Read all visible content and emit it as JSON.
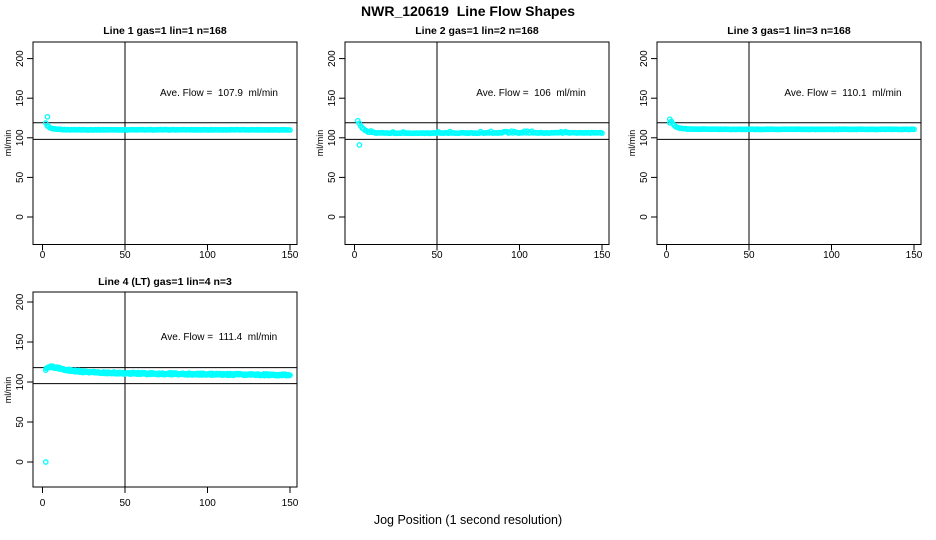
{
  "title": "NWR_120619  Line Flow Shapes",
  "footer": "Jog Position (1 second resolution)",
  "colors": {
    "points": "#00FFFF",
    "axis": "#000000",
    "background": "#FFFFFF"
  },
  "chart_data": [
    {
      "type": "scatter",
      "title": "Line 1 gas=1 lin=1 n=168",
      "annotation": "Ave. Flow =  107.9  ml/min",
      "ave_flow": 107.9,
      "ylabel": "ml/min",
      "xlabel": "",
      "x_ticks": [
        0,
        50,
        100,
        150
      ],
      "y_ticks": [
        0,
        50,
        100,
        150,
        200
      ],
      "xlim": [
        0,
        150
      ],
      "ylim": [
        0,
        200
      ],
      "vline_x": 50,
      "ref_lines": [
        98,
        119
      ],
      "n_shown": 168,
      "series_keypoints": [
        [
          2,
          118.5
        ],
        [
          3,
          115
        ],
        [
          5,
          112
        ],
        [
          8,
          110.8
        ],
        [
          14,
          110.2
        ],
        [
          30,
          110.1
        ],
        [
          150,
          110.1
        ]
      ],
      "outliers": [
        [
          3,
          126.5
        ]
      ],
      "jitter": 0.25,
      "spikes": false,
      "render_points": 168
    },
    {
      "type": "scatter",
      "title": "Line 2 gas=1 lin=2 n=168",
      "annotation": "Ave. Flow =  106  ml/min",
      "ave_flow": 106,
      "ylabel": "ml/min",
      "xlabel": "",
      "x_ticks": [
        0,
        50,
        100,
        150
      ],
      "y_ticks": [
        0,
        50,
        100,
        150,
        200
      ],
      "xlim": [
        0,
        150
      ],
      "ylim": [
        0,
        200
      ],
      "vline_x": 50,
      "ref_lines": [
        98,
        119
      ],
      "n_shown": 168,
      "series_keypoints": [
        [
          2,
          121.5
        ],
        [
          3,
          117.5
        ],
        [
          5,
          111.5
        ],
        [
          8,
          107.5
        ],
        [
          13,
          106.2
        ],
        [
          25,
          105.8
        ],
        [
          60,
          106
        ],
        [
          100,
          106.3
        ],
        [
          150,
          106.2
        ]
      ],
      "outliers": [
        [
          3,
          91
        ]
      ],
      "jitter": 0.35,
      "spikes": true,
      "render_points": 168
    },
    {
      "type": "scatter",
      "title": "Line 3 gas=1 lin=3 n=168",
      "annotation": "Ave. Flow =  110.1  ml/min",
      "ave_flow": 110.1,
      "ylabel": "ml/min",
      "xlabel": "",
      "x_ticks": [
        0,
        50,
        100,
        150
      ],
      "y_ticks": [
        0,
        50,
        100,
        150,
        200
      ],
      "xlim": [
        0,
        150
      ],
      "ylim": [
        0,
        200
      ],
      "vline_x": 50,
      "ref_lines": [
        98,
        119
      ],
      "n_shown": 168,
      "series_keypoints": [
        [
          2,
          123.5
        ],
        [
          3,
          120.5
        ],
        [
          5,
          114.5
        ],
        [
          8,
          112
        ],
        [
          14,
          111
        ],
        [
          40,
          110.7
        ],
        [
          150,
          110.7
        ]
      ],
      "outliers": [
        [
          2,
          119
        ]
      ],
      "jitter": 0.25,
      "spikes": false,
      "render_points": 168
    },
    {
      "type": "scatter",
      "title": "Line 4 (LT) gas=1 lin=4 n=3",
      "annotation": "Ave. Flow =  111.4  ml/min",
      "ave_flow": 111.4,
      "ylabel": "ml/min",
      "xlabel": "",
      "x_ticks": [
        0,
        50,
        100,
        150
      ],
      "y_ticks": [
        0,
        50,
        100,
        150,
        200
      ],
      "xlim": [
        0,
        150
      ],
      "ylim": [
        0,
        200
      ],
      "vline_x": 50,
      "ref_lines": [
        98,
        118
      ],
      "n_shown": 3,
      "series_keypoints": [
        [
          2,
          116
        ],
        [
          4,
          119
        ],
        [
          7,
          118.5
        ],
        [
          12,
          116
        ],
        [
          20,
          113.5
        ],
        [
          32,
          112
        ],
        [
          50,
          111
        ],
        [
          75,
          110.2
        ],
        [
          110,
          109.5
        ],
        [
          150,
          108.8
        ]
      ],
      "outliers": [
        [
          2,
          0
        ]
      ],
      "jitter": 1.15,
      "spikes": false,
      "render_points": 430
    }
  ]
}
